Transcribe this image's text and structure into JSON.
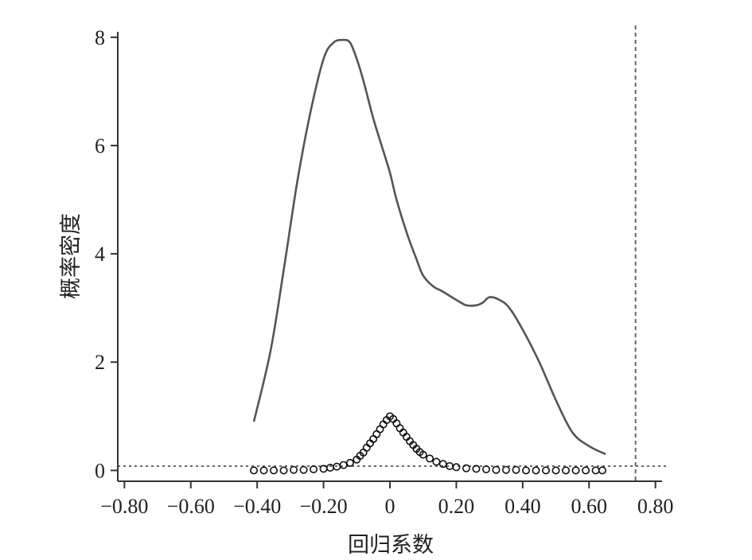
{
  "chart_data": {
    "type": "line",
    "title": "",
    "xlabel": "回归系数",
    "ylabel": "概率密度",
    "xlim": [
      -0.82,
      0.82
    ],
    "ylim": [
      -0.2,
      8.1
    ],
    "x_ticks": [
      -0.8,
      -0.6,
      -0.4,
      -0.2,
      0,
      0.2,
      0.4,
      0.6,
      0.8
    ],
    "x_tick_labels": [
      "−0.80",
      "−0.60",
      "−0.40",
      "−0.20",
      "0",
      "0.20",
      "0.40",
      "0.60",
      "0.80"
    ],
    "y_ticks": [
      0,
      2,
      4,
      6,
      8
    ],
    "y_tick_labels": [
      "0",
      "2",
      "4",
      "6",
      "8"
    ],
    "grid": false,
    "colors": {
      "curve": "#555555",
      "points": "#111111",
      "reference": "#666666",
      "axis": "#333333"
    },
    "series": [
      {
        "kind": "line",
        "x": [
          -0.41,
          -0.36,
          -0.32,
          -0.28,
          -0.24,
          -0.2,
          -0.17,
          -0.14,
          -0.12,
          -0.1,
          -0.08,
          -0.05,
          -0.02,
          0,
          0.02,
          0.05,
          0.08,
          0.1,
          0.13,
          0.16,
          0.2,
          0.23,
          0.26,
          0.28,
          0.3,
          0.33,
          0.36,
          0.4,
          0.45,
          0.5,
          0.55,
          0.6,
          0.65
        ],
        "y": [
          0.9,
          2.2,
          3.7,
          5.3,
          6.6,
          7.6,
          7.9,
          7.95,
          7.9,
          7.6,
          7.2,
          6.5,
          5.9,
          5.5,
          5.0,
          4.4,
          3.9,
          3.6,
          3.4,
          3.3,
          3.15,
          3.05,
          3.05,
          3.1,
          3.2,
          3.15,
          3.0,
          2.6,
          2.0,
          1.3,
          0.7,
          0.45,
          0.3
        ]
      },
      {
        "kind": "points",
        "x": [
          -0.41,
          -0.38,
          -0.35,
          -0.32,
          -0.29,
          -0.26,
          -0.23,
          -0.2,
          -0.18,
          -0.16,
          -0.14,
          -0.12,
          -0.1,
          -0.09,
          -0.08,
          -0.07,
          -0.06,
          -0.05,
          -0.04,
          -0.03,
          -0.02,
          -0.01,
          0,
          0.01,
          0.02,
          0.03,
          0.04,
          0.05,
          0.06,
          0.07,
          0.08,
          0.09,
          0.1,
          0.12,
          0.14,
          0.16,
          0.18,
          0.2,
          0.23,
          0.26,
          0.29,
          0.32,
          0.35,
          0.38,
          0.41,
          0.44,
          0.47,
          0.5,
          0.53,
          0.56,
          0.59,
          0.62,
          0.64
        ],
        "y": [
          0,
          0,
          0,
          0,
          0.01,
          0.01,
          0.02,
          0.03,
          0.05,
          0.07,
          0.1,
          0.14,
          0.2,
          0.27,
          0.33,
          0.42,
          0.5,
          0.58,
          0.67,
          0.76,
          0.85,
          0.93,
          1.0,
          0.95,
          0.87,
          0.78,
          0.7,
          0.62,
          0.54,
          0.47,
          0.4,
          0.34,
          0.29,
          0.22,
          0.16,
          0.12,
          0.08,
          0.06,
          0.04,
          0.03,
          0.02,
          0.01,
          0.01,
          0.01,
          0,
          0,
          0,
          0,
          0,
          0,
          0,
          0,
          0
        ]
      }
    ],
    "reference_lines": [
      {
        "orientation": "horizontal",
        "value": 0.08,
        "style": "dotted"
      },
      {
        "orientation": "vertical",
        "value": 0.74,
        "style": "dashed"
      }
    ]
  }
}
